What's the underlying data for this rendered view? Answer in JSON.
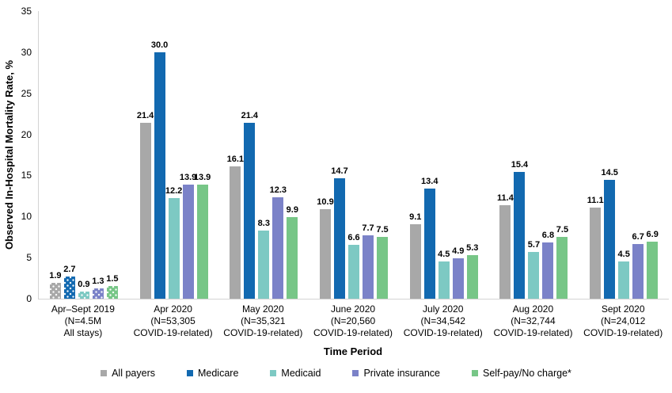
{
  "chart_data": {
    "type": "bar",
    "title": "",
    "xlabel": "Time Period",
    "ylabel": "Observed In-Hospital Mortality Rate, %",
    "ylim": [
      0,
      35
    ],
    "yticks": [
      0,
      5,
      10,
      15,
      20,
      25,
      30,
      35
    ],
    "grid": false,
    "legend_position": "bottom",
    "value_label_decimals": 1,
    "categories": [
      [
        "Apr–Sept 2019",
        "(N=4.5M",
        "All stays)"
      ],
      [
        "Apr 2020",
        "(N=53,305",
        "COVID-19-related)"
      ],
      [
        "May 2020",
        "(N=35,321",
        "COVID-19-related)"
      ],
      [
        "June 2020",
        "(N=20,560",
        "COVID-19-related)"
      ],
      [
        "July 2020",
        "(N=34,542",
        "COVID-19-related)"
      ],
      [
        "Aug 2020",
        "(N=32,744",
        "COVID-19-related)"
      ],
      [
        "Sept 2020",
        "(N=24,012",
        "COVID-19-related)"
      ]
    ],
    "series": [
      {
        "name": "All payers",
        "color": "#a8a8a8",
        "values": [
          1.9,
          21.4,
          16.1,
          10.9,
          9.1,
          11.4,
          11.1
        ]
      },
      {
        "name": "Medicare",
        "color": "#1269b0",
        "values": [
          2.7,
          30.0,
          21.4,
          14.7,
          13.4,
          15.4,
          14.5
        ]
      },
      {
        "name": "Medicaid",
        "color": "#7dc9c3",
        "values": [
          0.9,
          12.2,
          8.3,
          6.6,
          4.5,
          5.7,
          4.5
        ]
      },
      {
        "name": "Private insurance",
        "color": "#7b82c8",
        "values": [
          1.3,
          13.9,
          12.3,
          7.7,
          4.9,
          6.8,
          6.7
        ]
      },
      {
        "name": "Self-pay/No charge*",
        "color": "#77c687",
        "values": [
          1.5,
          13.9,
          9.9,
          7.5,
          5.3,
          7.5,
          6.9
        ]
      }
    ],
    "patterned_category_index": 0,
    "pattern_style": "white-dots",
    "axis_line_color": "#d3d3d3",
    "text_color": "#000000",
    "background_color": "#ffffff"
  }
}
